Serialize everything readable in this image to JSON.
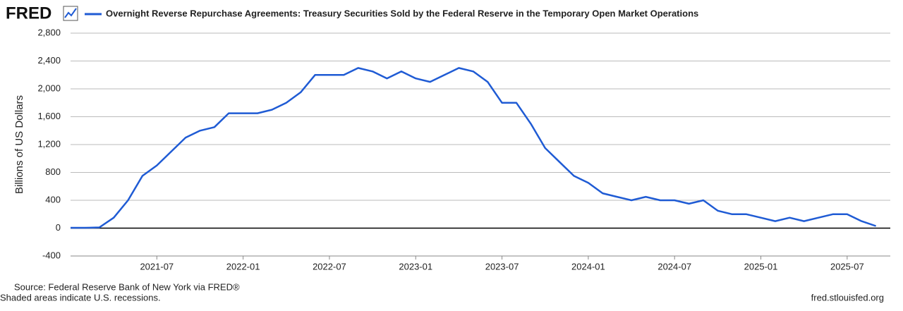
{
  "logo": "FRED",
  "chart_data": {
    "type": "line",
    "title": "Overnight Reverse Repurchase Agreements: Treasury Securities Sold by the Federal Reserve in the Temporary Open Market Operations",
    "y_label": "Billions of US Dollars",
    "x": [
      "2021-01",
      "2021-02",
      "2021-03",
      "2021-04",
      "2021-05",
      "2021-06",
      "2021-07",
      "2021-08",
      "2021-09",
      "2021-10",
      "2021-11",
      "2021-12",
      "2022-01",
      "2022-02",
      "2022-03",
      "2022-04",
      "2022-05",
      "2022-06",
      "2022-07",
      "2022-08",
      "2022-09",
      "2022-10",
      "2022-11",
      "2022-12",
      "2023-01",
      "2023-02",
      "2023-03",
      "2023-04",
      "2023-05",
      "2023-06",
      "2023-07",
      "2023-08",
      "2023-09",
      "2023-10",
      "2023-11",
      "2023-12",
      "2024-01",
      "2024-02",
      "2024-03",
      "2024-04",
      "2024-05",
      "2024-06",
      "2024-07",
      "2024-08",
      "2024-09",
      "2024-10",
      "2024-11",
      "2024-12",
      "2025-01",
      "2025-02",
      "2025-03",
      "2025-04",
      "2025-05",
      "2025-06",
      "2025-07",
      "2025-08",
      "2025-09"
    ],
    "series": [
      {
        "name": "Overnight Reverse Repurchase Agreements: Treasury Securities Sold by the Federal Reserve in the Temporary Open Market Operations",
        "color": "#1f5bd4",
        "values": [
          5,
          5,
          10,
          150,
          400,
          750,
          900,
          1100,
          1300,
          1400,
          1450,
          1650,
          1650,
          1650,
          1700,
          1800,
          1950,
          2200,
          2200,
          2200,
          2300,
          2250,
          2150,
          2250,
          2150,
          2100,
          2200,
          2300,
          2250,
          2100,
          1800,
          1800,
          1500,
          1150,
          950,
          750,
          650,
          500,
          450,
          400,
          450,
          400,
          400,
          350,
          400,
          250,
          200,
          200,
          150,
          100,
          150,
          100,
          150,
          200,
          200,
          100,
          30
        ]
      }
    ],
    "xlim": [
      "2021-01",
      "2025-10"
    ],
    "xticks": [
      "2021-07",
      "2022-01",
      "2022-07",
      "2023-01",
      "2023-07",
      "2024-01",
      "2024-07",
      "2025-01",
      "2025-07"
    ],
    "ylim": [
      -400,
      2800
    ],
    "yticks": [
      -400,
      0,
      {
        "value": 400,
        "label": "400"
      },
      {
        "value": 800,
        "label": "800"
      },
      {
        "value": 1200,
        "label": "1,200"
      },
      {
        "value": 1600,
        "label": "1,600"
      },
      {
        "value": 2000,
        "label": "2,000"
      },
      {
        "value": 2400,
        "label": "2,400"
      },
      {
        "value": 2800,
        "label": "2,800"
      }
    ],
    "grid": true
  },
  "footer": {
    "source": "Source: Federal Reserve Bank of New York via FRED®",
    "note": "Shaded areas indicate U.S. recessions.",
    "site": "fred.stlouisfed.org"
  }
}
